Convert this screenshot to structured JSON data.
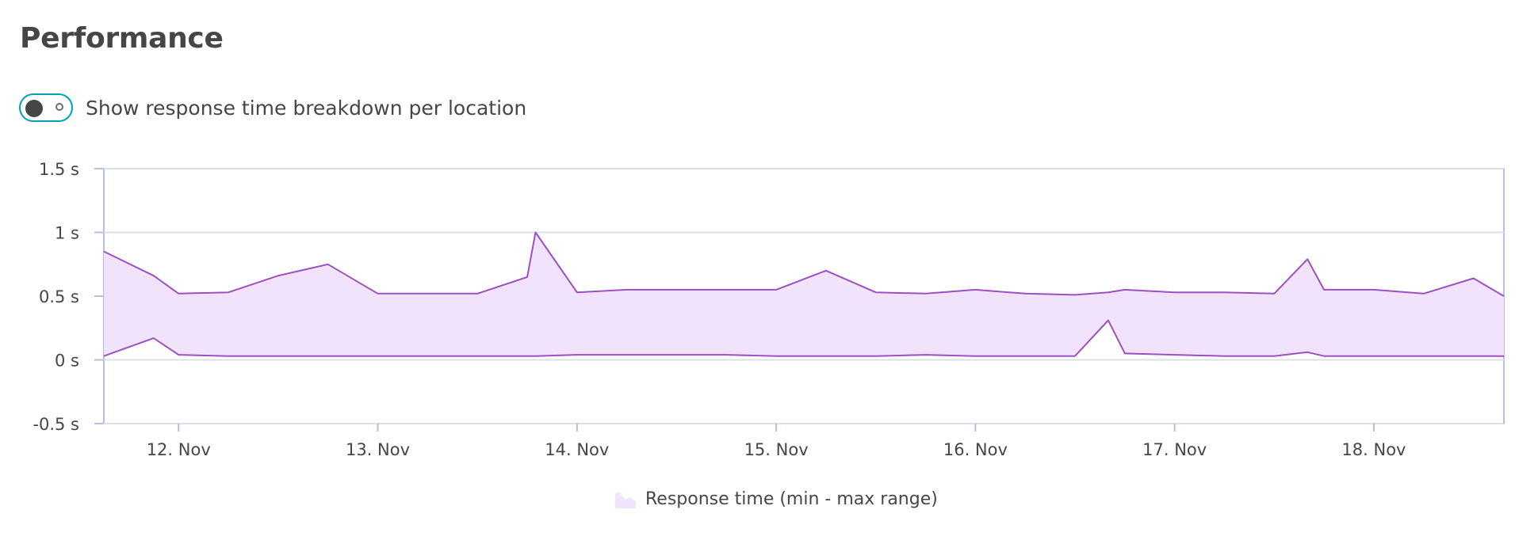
{
  "header": {
    "title": "Performance"
  },
  "toggle": {
    "label": "Show response time breakdown per location",
    "on": false,
    "accent_color": "#00a1b2"
  },
  "chart_data": {
    "type": "area",
    "x_unit": "time",
    "y_unit": "s",
    "ylim": [
      -0.5,
      1.5
    ],
    "xlim": [
      "2020-11-11T15:00",
      "2020-11-18T15:40"
    ],
    "grid": true,
    "y_ticks": [
      {
        "value": 1.5,
        "label": "1.5 s"
      },
      {
        "value": 1,
        "label": "1 s"
      },
      {
        "value": 0.5,
        "label": "0.5 s"
      },
      {
        "value": 0,
        "label": "0 s"
      },
      {
        "value": -0.5,
        "label": "-0.5 s"
      }
    ],
    "x_ticks": [
      {
        "value": "2020-11-12T00:00",
        "label": "12. Nov"
      },
      {
        "value": "2020-11-13T00:00",
        "label": "13. Nov"
      },
      {
        "value": "2020-11-14T00:00",
        "label": "14. Nov"
      },
      {
        "value": "2020-11-15T00:00",
        "label": "15. Nov"
      },
      {
        "value": "2020-11-16T00:00",
        "label": "16. Nov"
      },
      {
        "value": "2020-11-17T00:00",
        "label": "17. Nov"
      },
      {
        "value": "2020-11-18T00:00",
        "label": "18. Nov"
      }
    ],
    "series": [
      {
        "name": "Response time (min - max range)",
        "color": "#9c50c1",
        "fill": "#f1e3fb",
        "x": [
          "2020-11-11T15:00",
          "2020-11-11T21:00",
          "2020-11-12T00:00",
          "2020-11-12T06:00",
          "2020-11-12T12:00",
          "2020-11-12T18:00",
          "2020-11-13T00:00",
          "2020-11-13T06:00",
          "2020-11-13T12:00",
          "2020-11-13T18:00",
          "2020-11-13T19:00",
          "2020-11-14T00:00",
          "2020-11-14T06:00",
          "2020-11-14T12:00",
          "2020-11-14T18:00",
          "2020-11-15T00:00",
          "2020-11-15T06:00",
          "2020-11-15T12:00",
          "2020-11-15T18:00",
          "2020-11-16T00:00",
          "2020-11-16T06:00",
          "2020-11-16T12:00",
          "2020-11-16T16:00",
          "2020-11-16T18:00",
          "2020-11-17T00:00",
          "2020-11-17T06:00",
          "2020-11-17T12:00",
          "2020-11-17T16:00",
          "2020-11-17T18:00",
          "2020-11-18T00:00",
          "2020-11-18T06:00",
          "2020-11-18T12:00",
          "2020-11-18T15:40"
        ],
        "min": [
          0.03,
          0.17,
          0.04,
          0.03,
          0.03,
          0.03,
          0.03,
          0.03,
          0.03,
          0.03,
          0.03,
          0.04,
          0.04,
          0.04,
          0.04,
          0.03,
          0.03,
          0.03,
          0.04,
          0.03,
          0.03,
          0.03,
          0.31,
          0.05,
          0.04,
          0.03,
          0.03,
          0.06,
          0.03,
          0.03,
          0.03,
          0.03,
          0.03
        ],
        "max": [
          0.85,
          0.66,
          0.52,
          0.53,
          0.66,
          0.75,
          0.52,
          0.52,
          0.52,
          0.65,
          1.0,
          0.53,
          0.55,
          0.55,
          0.55,
          0.55,
          0.7,
          0.53,
          0.52,
          0.55,
          0.52,
          0.51,
          0.53,
          0.55,
          0.53,
          0.53,
          0.52,
          0.79,
          0.55,
          0.55,
          0.52,
          0.64,
          0.5
        ]
      }
    ],
    "legend_position": "bottom"
  }
}
